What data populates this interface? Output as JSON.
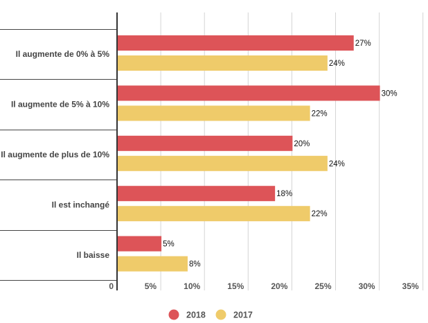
{
  "chart_data": {
    "type": "bar",
    "orientation": "horizontal",
    "categories": [
      "Il augmente de 0% à 5%",
      "Il augmente de 5% à 10%",
      "Il augmente de plus de 10%",
      "Il est inchangé",
      "Il baisse"
    ],
    "series": [
      {
        "name": "2018",
        "color": "#dd5458",
        "values": [
          27,
          30,
          20,
          18,
          5
        ],
        "labels": [
          "27%",
          "30%",
          "20%",
          "18%",
          "5%"
        ]
      },
      {
        "name": "2017",
        "color": "#efcb6a",
        "values": [
          24,
          22,
          24,
          22,
          8
        ],
        "labels": [
          "24%",
          "22%",
          "24%",
          "22%",
          "8%"
        ]
      }
    ],
    "xlim": [
      0,
      35
    ],
    "xticks": [
      0,
      5,
      10,
      15,
      20,
      25,
      30,
      35
    ],
    "xtick_labels": [
      "0",
      "5%",
      "10%",
      "15%",
      "20%",
      "25%",
      "30%",
      "35%"
    ],
    "grid": true,
    "legend_position": "bottom-center",
    "title": "",
    "xlabel": "",
    "ylabel": ""
  }
}
